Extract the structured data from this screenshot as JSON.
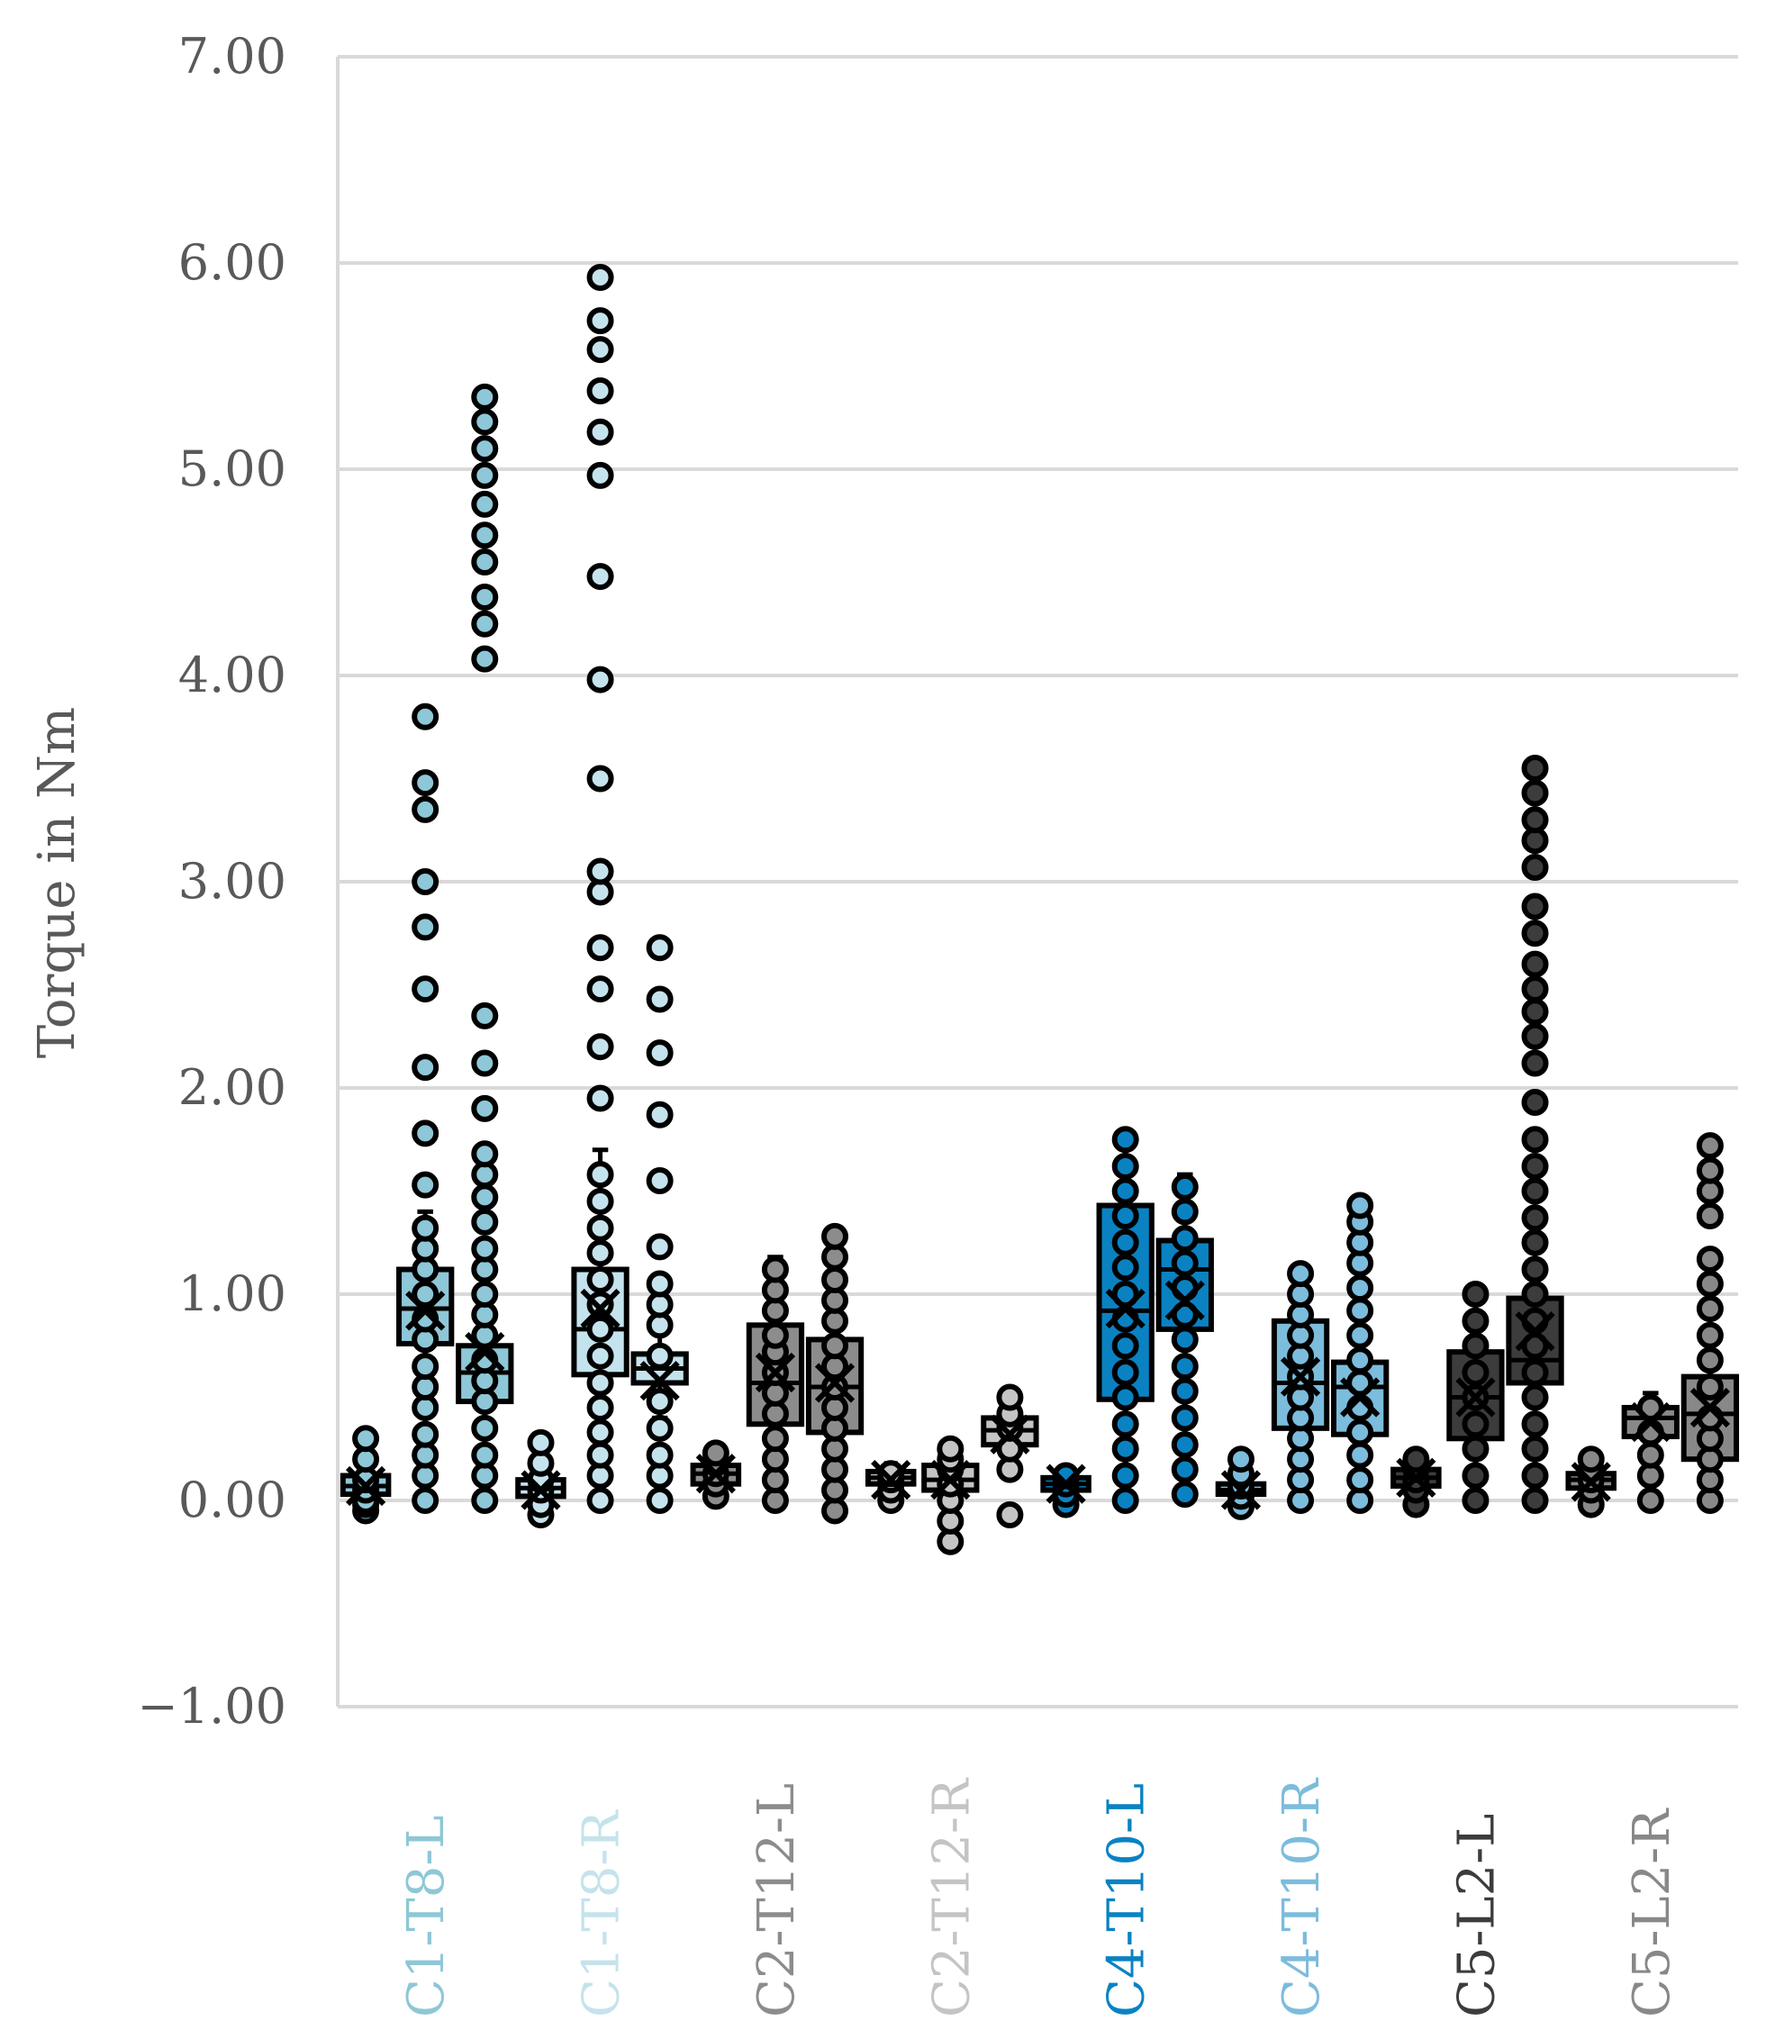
{
  "chart_data": {
    "type": "box",
    "title": "",
    "xlabel": "",
    "ylabel": "Torque in Nm",
    "ylim": [
      -1.0,
      7.0
    ],
    "yticks": [
      "7.00",
      "6.00",
      "5.00",
      "4.00",
      "3.00",
      "2.00",
      "1.00",
      "0.00",
      "−1.00"
    ],
    "ytick_values": [
      7,
      6,
      5,
      4,
      3,
      2,
      1,
      0,
      -1
    ],
    "grid": true,
    "categories": [
      {
        "label": "C1-T8-L",
        "color": "#8ec7d7"
      },
      {
        "label": "C1-T8-R",
        "color": "#c5e3ec"
      },
      {
        "label": "C2-T12-L",
        "color": "#8c8c8c"
      },
      {
        "label": "C2-T12-R",
        "color": "#c4c4c4"
      },
      {
        "label": "C4-T10-L",
        "color": "#0a82c2"
      },
      {
        "label": "C4-T10-R",
        "color": "#7cbcdc"
      },
      {
        "label": "C5-L2-L",
        "color": "#3c3c3c"
      },
      {
        "label": "C5-L2-R",
        "color": "#888888"
      }
    ],
    "series": [
      {
        "group": 0,
        "q1": 0.03,
        "q3": 0.12,
        "median": 0.07,
        "mean": 0.07,
        "wlo": -0.03,
        "whi": 0.2,
        "points": [
          -0.05,
          -0.02,
          0.0,
          0.05,
          0.1,
          0.2,
          0.3
        ]
      },
      {
        "group": 0,
        "q1": 0.76,
        "q3": 1.12,
        "median": 0.93,
        "mean": 0.92,
        "wlo": 0.0,
        "whi": 1.4,
        "points": [
          0.0,
          0.12,
          0.22,
          0.32,
          0.45,
          0.55,
          0.65,
          0.78,
          0.88,
          1.0,
          1.12,
          1.22,
          1.32,
          1.53,
          1.78,
          2.1,
          2.48,
          2.78,
          3.0,
          3.35,
          3.48,
          3.8
        ]
      },
      {
        "group": 0,
        "q1": 0.48,
        "q3": 0.75,
        "median": 0.62,
        "mean": 0.72,
        "wlo": 0.0,
        "whi": 1.1,
        "points": [
          0.0,
          0.12,
          0.22,
          0.35,
          0.48,
          0.58,
          0.68,
          0.8,
          0.9,
          1.0,
          1.12,
          1.22,
          1.35,
          1.47,
          1.58,
          1.68,
          1.9,
          2.12,
          2.35,
          4.08,
          4.25,
          4.38,
          4.55,
          4.68,
          4.83,
          4.97,
          5.1,
          5.23,
          5.35
        ]
      },
      {
        "group": 1,
        "q1": 0.02,
        "q3": 0.1,
        "median": 0.06,
        "mean": 0.05,
        "wlo": -0.05,
        "whi": 0.18,
        "points": [
          -0.07,
          -0.02,
          0.05,
          0.1,
          0.18,
          0.28
        ]
      },
      {
        "group": 1,
        "q1": 0.61,
        "q3": 1.12,
        "median": 0.83,
        "mean": 0.93,
        "wlo": 0.0,
        "whi": 1.7,
        "points": [
          0.0,
          0.12,
          0.22,
          0.33,
          0.45,
          0.57,
          0.7,
          0.83,
          0.95,
          1.07,
          1.2,
          1.32,
          1.45,
          1.58,
          1.95,
          2.2,
          2.48,
          2.68,
          2.95,
          3.05,
          3.5,
          3.98,
          4.48,
          4.97,
          5.18,
          5.38,
          5.58,
          5.72,
          5.93
        ]
      },
      {
        "group": 1,
        "q1": 0.57,
        "q3": 0.71,
        "median": 0.64,
        "mean": 0.58,
        "wlo": 0.4,
        "whi": 0.85,
        "points": [
          0.0,
          0.12,
          0.22,
          0.35,
          0.48,
          0.7,
          0.85,
          0.95,
          1.05,
          1.23,
          1.55,
          1.87,
          2.17,
          2.43,
          2.68
        ]
      },
      {
        "group": 2,
        "q1": 0.08,
        "q3": 0.17,
        "median": 0.13,
        "mean": 0.13,
        "wlo": 0.02,
        "whi": 0.23,
        "points": [
          0.02,
          0.08,
          0.13,
          0.18,
          0.23
        ]
      },
      {
        "group": 2,
        "q1": 0.37,
        "q3": 0.85,
        "median": 0.57,
        "mean": 0.62,
        "wlo": 0.0,
        "whi": 1.18,
        "points": [
          0.0,
          0.1,
          0.2,
          0.3,
          0.42,
          0.52,
          0.62,
          0.72,
          0.8,
          0.92,
          1.02,
          1.12
        ]
      },
      {
        "group": 2,
        "q1": 0.33,
        "q3": 0.78,
        "median": 0.55,
        "mean": 0.57,
        "wlo": -0.05,
        "whi": 1.28,
        "points": [
          -0.05,
          0.05,
          0.15,
          0.25,
          0.35,
          0.45,
          0.55,
          0.65,
          0.75,
          0.87,
          0.97,
          1.07,
          1.18,
          1.28
        ]
      },
      {
        "group": 3,
        "q1": 0.08,
        "q3": 0.14,
        "median": 0.11,
        "mean": 0.1,
        "wlo": 0.0,
        "whi": 0.18,
        "points": [
          0.0,
          0.05,
          0.1,
          0.13
        ]
      },
      {
        "group": 3,
        "q1": 0.05,
        "q3": 0.17,
        "median": 0.1,
        "mean": 0.1,
        "wlo": -0.2,
        "whi": 0.27,
        "points": [
          -0.2,
          -0.1,
          0.0,
          0.08,
          0.15,
          0.2,
          0.25
        ]
      },
      {
        "group": 3,
        "q1": 0.27,
        "q3": 0.4,
        "median": 0.34,
        "mean": 0.32,
        "wlo": 0.15,
        "whi": 0.5,
        "points": [
          -0.07,
          0.15,
          0.25,
          0.35,
          0.42,
          0.5
        ]
      },
      {
        "group": 4,
        "q1": 0.05,
        "q3": 0.11,
        "median": 0.08,
        "mean": 0.08,
        "wlo": -0.02,
        "whi": 0.15,
        "points": [
          -0.02,
          0.03,
          0.08,
          0.12
        ]
      },
      {
        "group": 4,
        "q1": 0.49,
        "q3": 1.43,
        "median": 0.92,
        "mean": 0.93,
        "wlo": 0.0,
        "whi": 1.75,
        "points": [
          0.0,
          0.12,
          0.25,
          0.37,
          0.5,
          0.62,
          0.75,
          0.88,
          1.0,
          1.13,
          1.25,
          1.38,
          1.5,
          1.62,
          1.75
        ]
      },
      {
        "group": 4,
        "q1": 0.83,
        "q3": 1.26,
        "median": 1.12,
        "mean": 0.97,
        "wlo": 0.03,
        "whi": 1.58,
        "points": [
          0.03,
          0.15,
          0.27,
          0.4,
          0.53,
          0.65,
          0.78,
          0.9,
          1.03,
          1.15,
          1.27,
          1.4,
          1.52
        ]
      },
      {
        "group": 5,
        "q1": 0.03,
        "q3": 0.08,
        "median": 0.05,
        "mean": 0.05,
        "wlo": -0.03,
        "whi": 0.13,
        "points": [
          -0.03,
          0.02,
          0.07,
          0.13,
          0.2
        ]
      },
      {
        "group": 5,
        "q1": 0.35,
        "q3": 0.87,
        "median": 0.57,
        "mean": 0.6,
        "wlo": 0.0,
        "whi": 1.1,
        "points": [
          0.0,
          0.1,
          0.2,
          0.3,
          0.4,
          0.5,
          0.6,
          0.7,
          0.8,
          0.9,
          1.0,
          1.1
        ]
      },
      {
        "group": 5,
        "q1": 0.32,
        "q3": 0.67,
        "median": 0.55,
        "mean": 0.5,
        "wlo": 0.0,
        "whi": 1.0,
        "points": [
          0.0,
          0.1,
          0.22,
          0.33,
          0.45,
          0.57,
          0.68,
          0.8,
          0.92,
          1.03,
          1.15,
          1.25,
          1.35,
          1.43
        ]
      },
      {
        "group": 6,
        "q1": 0.07,
        "q3": 0.15,
        "median": 0.11,
        "mean": 0.11,
        "wlo": -0.02,
        "whi": 0.2,
        "points": [
          -0.02,
          0.05,
          0.1,
          0.15,
          0.2
        ]
      },
      {
        "group": 6,
        "q1": 0.3,
        "q3": 0.72,
        "median": 0.5,
        "mean": 0.5,
        "wlo": 0.0,
        "whi": 1.0,
        "points": [
          0.0,
          0.12,
          0.25,
          0.37,
          0.5,
          0.62,
          0.75,
          0.87,
          1.0
        ]
      },
      {
        "group": 6,
        "q1": 0.57,
        "q3": 0.98,
        "median": 0.68,
        "mean": 0.82,
        "wlo": 0.0,
        "whi": 1.4,
        "points": [
          0.0,
          0.12,
          0.25,
          0.37,
          0.5,
          0.62,
          0.75,
          0.87,
          1.0,
          1.12,
          1.25,
          1.37,
          1.5,
          1.62,
          1.75,
          1.93,
          2.12,
          2.25,
          2.37,
          2.48,
          2.6,
          2.75,
          2.88,
          3.07,
          3.2,
          3.3,
          3.43,
          3.55
        ]
      },
      {
        "group": 7,
        "q1": 0.06,
        "q3": 0.13,
        "median": 0.1,
        "mean": 0.09,
        "wlo": -0.02,
        "whi": 0.18,
        "points": [
          -0.02,
          0.05,
          0.1,
          0.15,
          0.2
        ]
      },
      {
        "group": 7,
        "q1": 0.31,
        "q3": 0.45,
        "median": 0.4,
        "mean": 0.38,
        "wlo": 0.0,
        "whi": 0.52,
        "points": [
          0.0,
          0.12,
          0.22,
          0.33,
          0.45
        ]
      },
      {
        "group": 7,
        "q1": 0.2,
        "q3": 0.6,
        "median": 0.42,
        "mean": 0.45,
        "wlo": 0.0,
        "whi": 1.2,
        "points": [
          0.0,
          0.1,
          0.2,
          0.3,
          0.4,
          0.55,
          0.68,
          0.8,
          0.93,
          1.05,
          1.17,
          1.38,
          1.5,
          1.6,
          1.72
        ]
      }
    ]
  }
}
